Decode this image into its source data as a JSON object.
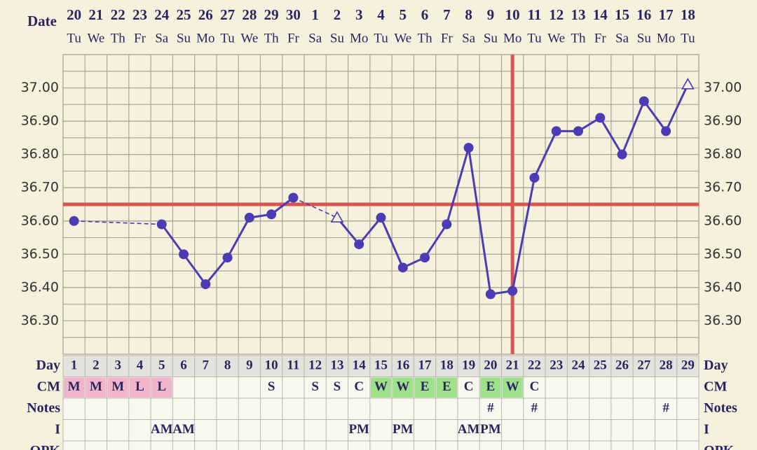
{
  "chart_data": {
    "type": "line",
    "date_label": "Date",
    "dates": [
      20,
      21,
      22,
      23,
      24,
      25,
      26,
      27,
      28,
      29,
      30,
      1,
      2,
      3,
      4,
      5,
      6,
      7,
      8,
      9,
      10,
      11,
      12,
      13,
      14,
      15,
      16,
      17,
      18
    ],
    "weekdays": [
      "Tu",
      "We",
      "Th",
      "Fr",
      "Sa",
      "Su",
      "Mo",
      "Tu",
      "We",
      "Th",
      "Fr",
      "Sa",
      "Su",
      "Mo",
      "Tu",
      "We",
      "Th",
      "Fr",
      "Sa",
      "Su",
      "Mo",
      "Tu",
      "We",
      "Th",
      "Fr",
      "Sa",
      "Su",
      "Mo",
      "Tu"
    ],
    "day_label": "Day",
    "days": [
      1,
      2,
      3,
      4,
      5,
      6,
      7,
      8,
      9,
      10,
      11,
      12,
      13,
      14,
      15,
      16,
      17,
      18,
      19,
      20,
      21,
      22,
      23,
      24,
      25,
      26,
      27,
      28,
      29
    ],
    "values": [
      36.6,
      null,
      null,
      null,
      36.59,
      36.5,
      36.41,
      36.49,
      36.61,
      36.62,
      36.67,
      null,
      36.61,
      36.53,
      36.61,
      36.46,
      36.49,
      36.59,
      36.82,
      36.38,
      36.39,
      36.73,
      36.87,
      36.87,
      36.91,
      36.8,
      36.96,
      36.87,
      37.01
    ],
    "markers": [
      "circle",
      null,
      null,
      null,
      "circle",
      "circle",
      "circle",
      "circle",
      "circle",
      "circle",
      "circle",
      null,
      "triangle",
      "circle",
      "circle",
      "circle",
      "circle",
      "circle",
      "circle",
      "circle",
      "circle",
      "circle",
      "circle",
      "circle",
      "circle",
      "circle",
      "circle",
      "circle",
      "triangle"
    ],
    "color": "#4b3cb5",
    "ylim": [
      36.2,
      37.1
    ],
    "yticks": [
      {
        "value": 36.3,
        "label": "36.30"
      },
      {
        "value": 36.4,
        "label": "36.40"
      },
      {
        "value": 36.5,
        "label": "36.50"
      },
      {
        "value": 36.6,
        "label": "36.60"
      },
      {
        "value": 36.7,
        "label": "36.70"
      },
      {
        "value": 36.8,
        "label": "36.80"
      },
      {
        "value": 36.9,
        "label": "36.90"
      },
      {
        "value": 37.0,
        "label": "37.00"
      }
    ],
    "grid": true,
    "coverline": 36.65,
    "ovulation_day": 21,
    "reference_color": "#d9534f"
  },
  "rows": [
    {
      "label": "CM",
      "cells": [
        "M",
        "M",
        "M",
        "L",
        "L",
        null,
        null,
        null,
        null,
        "S",
        null,
        "S",
        "S",
        "C",
        "W",
        "W",
        "E",
        "E",
        "C",
        "E",
        "W",
        "C",
        null,
        null,
        null,
        null,
        null,
        null,
        null
      ]
    },
    {
      "label": "Notes",
      "cells": [
        null,
        null,
        null,
        null,
        null,
        null,
        null,
        null,
        null,
        null,
        null,
        null,
        null,
        null,
        null,
        null,
        null,
        null,
        null,
        "#",
        null,
        "#",
        null,
        null,
        null,
        null,
        null,
        "#",
        null
      ]
    },
    {
      "label": "I",
      "cells": [
        null,
        null,
        null,
        null,
        "AM",
        "AM",
        null,
        null,
        null,
        null,
        null,
        null,
        null,
        "PM",
        null,
        "PM",
        null,
        null,
        "AM",
        "PM",
        null,
        null,
        null,
        null,
        null,
        null,
        null,
        null,
        null
      ]
    },
    {
      "label": "OPK",
      "cells": []
    }
  ],
  "cell_colors": {
    "M": "#f2b6cc",
    "L": "#f2b6cc",
    "W": "#9fe08b",
    "E": "#9fe08b"
  }
}
